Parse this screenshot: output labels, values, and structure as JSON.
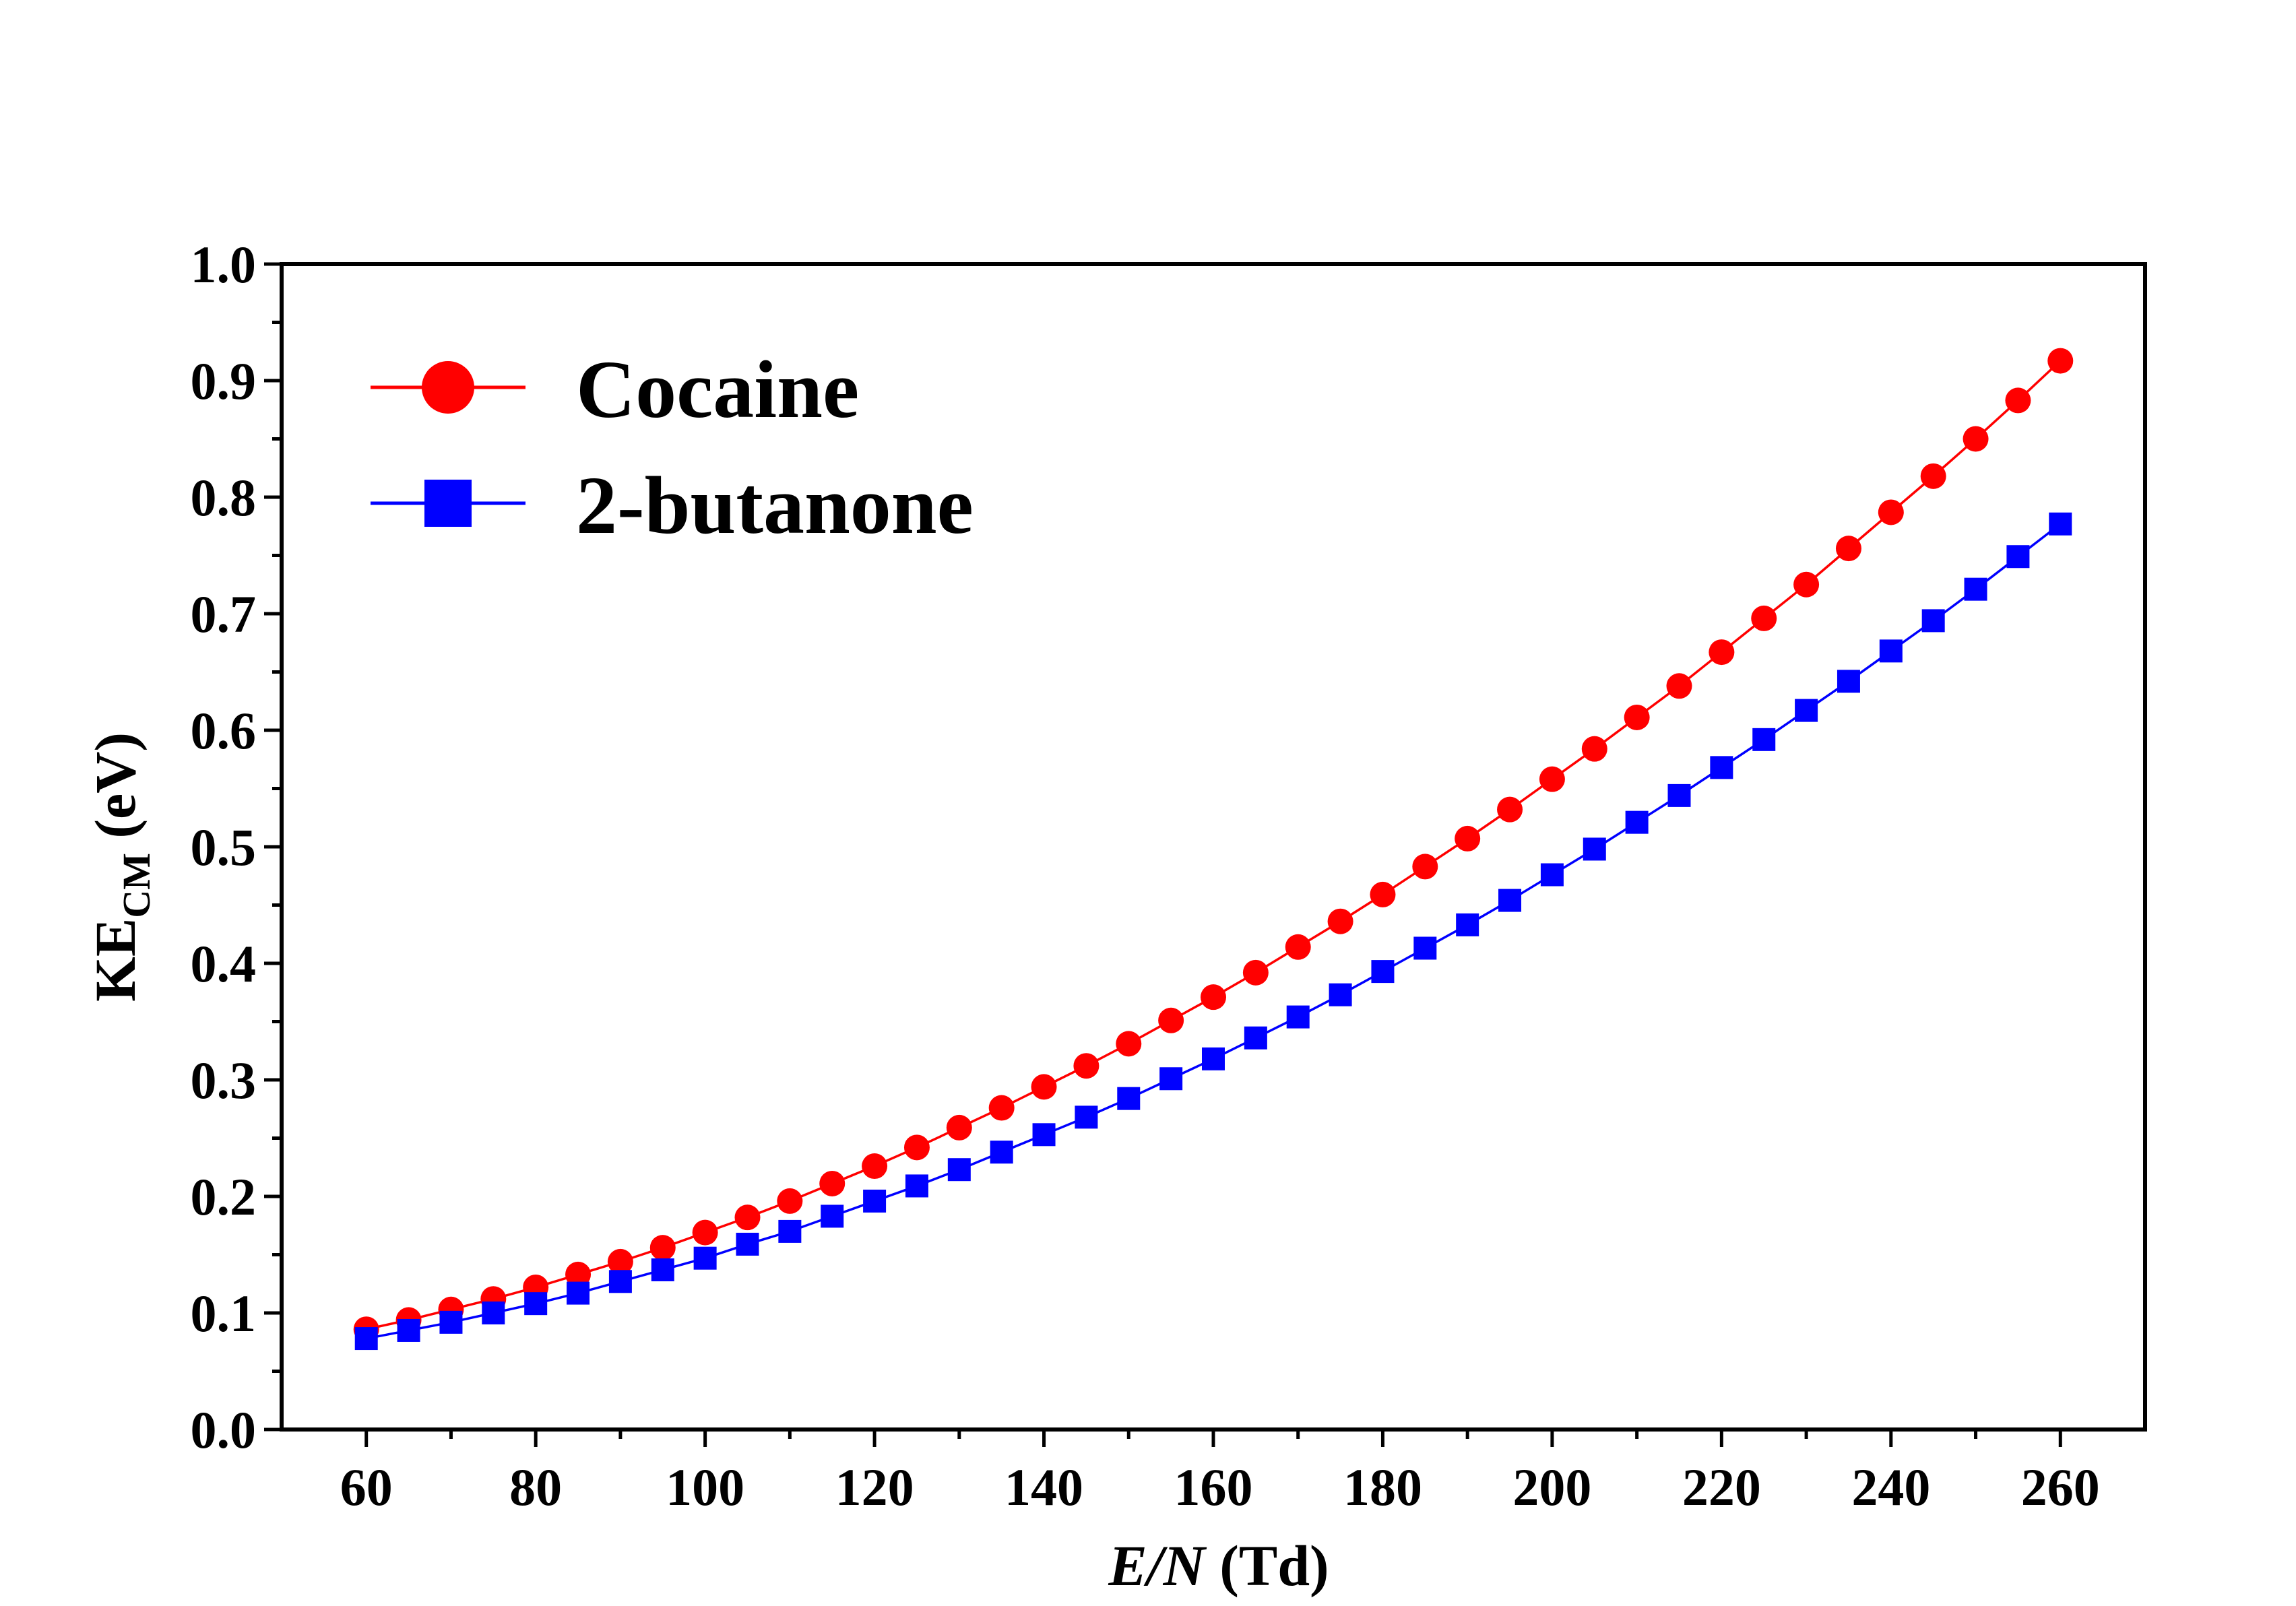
{
  "chart_data": {
    "type": "line",
    "xlabel": {
      "italic": "E/N",
      "rest": " (Td)"
    },
    "ylabel": {
      "main": "KE",
      "sub": "CM",
      "rest": " (eV)"
    },
    "xlim": [
      50,
      270
    ],
    "ylim": [
      0.0,
      1.0
    ],
    "xticks": [
      60,
      80,
      100,
      120,
      140,
      160,
      180,
      200,
      220,
      240,
      260
    ],
    "yticks": [
      0.0,
      0.1,
      0.2,
      0.3,
      0.4,
      0.5,
      0.6,
      0.7,
      0.8,
      0.9,
      1.0
    ],
    "grid": false,
    "legend_position": "top-left",
    "x": [
      60,
      65,
      70,
      75,
      80,
      85,
      90,
      95,
      100,
      105,
      110,
      115,
      120,
      125,
      130,
      135,
      140,
      145,
      150,
      155,
      160,
      165,
      170,
      175,
      180,
      185,
      190,
      195,
      200,
      205,
      210,
      215,
      220,
      225,
      230,
      235,
      240,
      245,
      250,
      255,
      260
    ],
    "series": [
      {
        "name": "Cocaine",
        "color": "#ff0000",
        "marker": "circle",
        "values": [
          0.086,
          0.094,
          0.103,
          0.112,
          0.122,
          0.133,
          0.144,
          0.156,
          0.169,
          0.182,
          0.196,
          0.211,
          0.226,
          0.242,
          0.259,
          0.276,
          0.294,
          0.312,
          0.331,
          0.351,
          0.371,
          0.392,
          0.414,
          0.436,
          0.459,
          0.483,
          0.507,
          0.532,
          0.558,
          0.584,
          0.611,
          0.638,
          0.667,
          0.696,
          0.725,
          0.756,
          0.787,
          0.818,
          0.85,
          0.883,
          0.917
        ]
      },
      {
        "name": "2-butanone",
        "color": "#0000ff",
        "marker": "square",
        "values": [
          0.078,
          0.085,
          0.092,
          0.1,
          0.108,
          0.117,
          0.127,
          0.137,
          0.147,
          0.159,
          0.17,
          0.183,
          0.196,
          0.209,
          0.223,
          0.238,
          0.253,
          0.268,
          0.284,
          0.301,
          0.318,
          0.336,
          0.354,
          0.373,
          0.393,
          0.413,
          0.433,
          0.454,
          0.476,
          0.498,
          0.521,
          0.544,
          0.568,
          0.592,
          0.617,
          0.642,
          0.668,
          0.694,
          0.721,
          0.749,
          0.777
        ]
      }
    ]
  }
}
